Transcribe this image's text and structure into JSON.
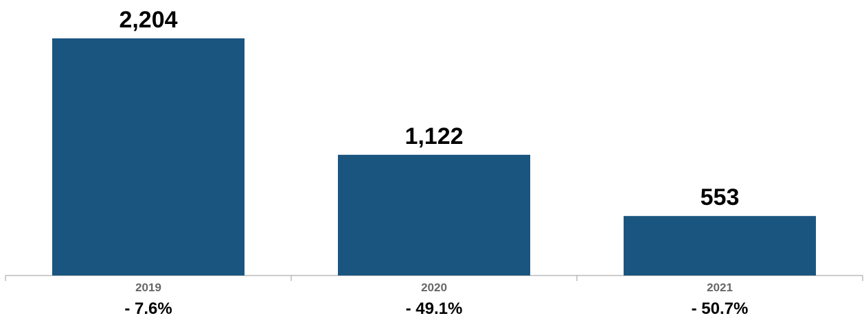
{
  "chart_data": {
    "type": "bar",
    "title": "",
    "xlabel": "",
    "ylabel": "",
    "categories": [
      "2019",
      "2020",
      "2021"
    ],
    "values": [
      2204,
      1122,
      553
    ],
    "value_labels": [
      "2,204",
      "1,122",
      "553"
    ],
    "change_labels": [
      "- 7.6%",
      "- 49.1%",
      "- 50.7%"
    ],
    "ylim": [
      0,
      2204
    ],
    "grid": false,
    "legend": "none",
    "bar_color": "#1a5580",
    "axis_color": "#999999"
  }
}
